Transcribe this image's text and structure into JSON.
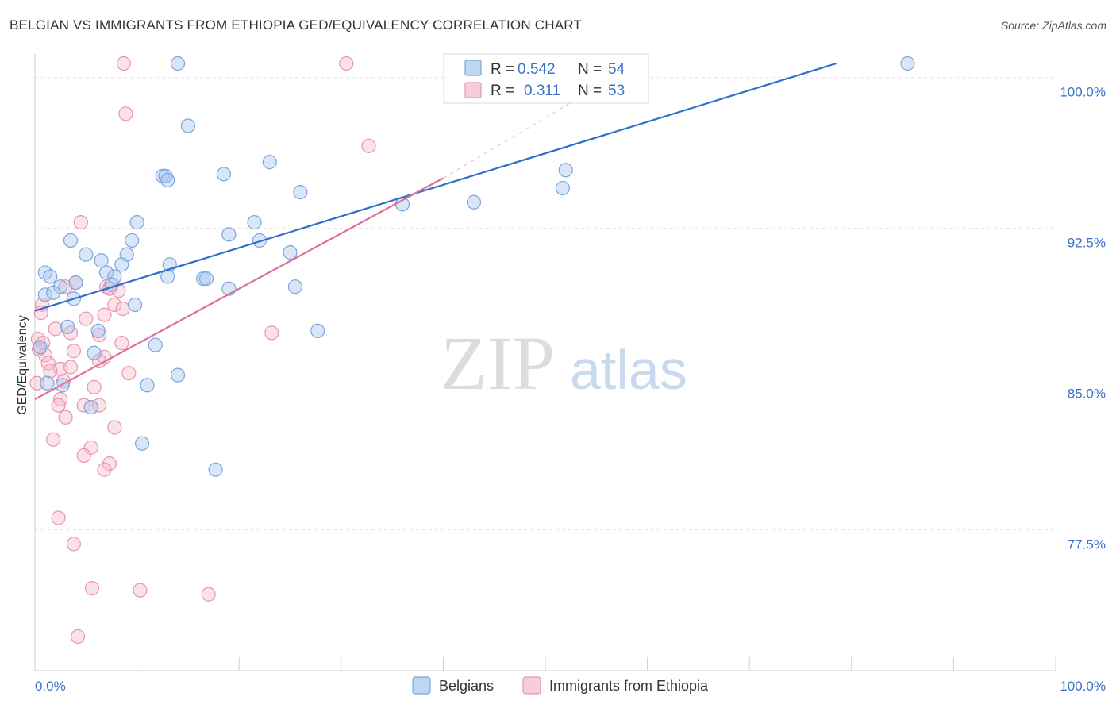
{
  "title": "BELGIAN VS IMMIGRANTS FROM ETHIOPIA GED/EQUIVALENCY CORRELATION CHART",
  "source": "Source: ZipAtlas.com",
  "watermark": {
    "zip": "ZIP",
    "atlas": "atlas"
  },
  "legend": {
    "r_label": "R =",
    "n_label": "N =",
    "rows": [
      {
        "r": "0.542",
        "n": "54"
      },
      {
        "r": "0.311",
        "n": "53"
      }
    ]
  },
  "bottom_legend": [
    "Belgians",
    "Immigrants from Ethiopia"
  ],
  "colors": {
    "belgians_fill": "#a8c8f0",
    "belgians_stroke": "#7aa6dc",
    "belgians_line": "#2f6fca",
    "ethiopia_fill": "#f6bccd",
    "ethiopia_stroke": "#e895b0",
    "ethiopia_line": "#e06f98",
    "tick_text": "#3b73c8"
  },
  "chart_data": {
    "type": "scatter",
    "ylabel": "GED/Equivalency",
    "xlim": [
      0,
      100
    ],
    "ylim": [
      70.5,
      100.7
    ],
    "x_tick_labels": [
      "0.0%",
      "100.0%"
    ],
    "y_ticks": [
      {
        "value": 100.0,
        "label": "100.0%"
      },
      {
        "value": 92.5,
        "label": "92.5%"
      },
      {
        "value": 85.0,
        "label": "85.0%"
      },
      {
        "value": 77.5,
        "label": "77.5%"
      }
    ],
    "series": [
      {
        "name": "Belgians",
        "trend": {
          "x": [
            0,
            78.5
          ],
          "y": [
            88.4,
            100.7
          ]
        },
        "points": [
          [
            14,
            100.7
          ],
          [
            85.5,
            100.7
          ],
          [
            15,
            97.6
          ],
          [
            23,
            95.8
          ],
          [
            18.5,
            95.2
          ],
          [
            12.5,
            95.1
          ],
          [
            12.8,
            95.1
          ],
          [
            13,
            94.9
          ],
          [
            26,
            94.3
          ],
          [
            43,
            93.8
          ],
          [
            36,
            93.7
          ],
          [
            51.7,
            94.5
          ],
          [
            52,
            95.4
          ],
          [
            10,
            92.8
          ],
          [
            21.5,
            92.8
          ],
          [
            19,
            92.2
          ],
          [
            22,
            91.9
          ],
          [
            3.5,
            91.9
          ],
          [
            9.5,
            91.9
          ],
          [
            5,
            91.2
          ],
          [
            9,
            91.2
          ],
          [
            25,
            91.3
          ],
          [
            6.5,
            90.9
          ],
          [
            8.5,
            90.7
          ],
          [
            13.2,
            90.7
          ],
          [
            1,
            90.3
          ],
          [
            7,
            90.3
          ],
          [
            1.5,
            90.1
          ],
          [
            7.8,
            90.1
          ],
          [
            13,
            90.1
          ],
          [
            16.5,
            90.0
          ],
          [
            16.8,
            90.0
          ],
          [
            4,
            89.8
          ],
          [
            2.5,
            89.6
          ],
          [
            7.5,
            89.7
          ],
          [
            19,
            89.5
          ],
          [
            25.5,
            89.6
          ],
          [
            1,
            89.2
          ],
          [
            1.8,
            89.3
          ],
          [
            3.8,
            89.0
          ],
          [
            9.8,
            88.7
          ],
          [
            3.2,
            87.6
          ],
          [
            6.2,
            87.4
          ],
          [
            27.7,
            87.4
          ],
          [
            0.5,
            86.6
          ],
          [
            5.8,
            86.3
          ],
          [
            11.8,
            86.7
          ],
          [
            2.7,
            84.7
          ],
          [
            11,
            84.7
          ],
          [
            14,
            85.2
          ],
          [
            5.5,
            83.6
          ],
          [
            10.5,
            81.8
          ],
          [
            17.7,
            80.5
          ],
          [
            1.2,
            84.8
          ]
        ]
      },
      {
        "name": "Immigrants from Ethiopia",
        "trend": {
          "x": [
            0,
            40
          ],
          "y": [
            84.0,
            95.0
          ]
        },
        "trend_extension": {
          "x": [
            40,
            54
          ],
          "y": [
            95.0,
            99.2
          ]
        },
        "points": [
          [
            8.7,
            100.7
          ],
          [
            30.5,
            100.7
          ],
          [
            8.9,
            98.2
          ],
          [
            32.7,
            96.6
          ],
          [
            4.5,
            92.8
          ],
          [
            3,
            89.6
          ],
          [
            4,
            89.8
          ],
          [
            7,
            89.6
          ],
          [
            7.3,
            89.5
          ],
          [
            0.7,
            88.7
          ],
          [
            0.6,
            88.3
          ],
          [
            6.8,
            88.2
          ],
          [
            7.8,
            88.7
          ],
          [
            2,
            87.5
          ],
          [
            3.5,
            87.3
          ],
          [
            23.2,
            87.3
          ],
          [
            6.3,
            87.2
          ],
          [
            0.3,
            87.0
          ],
          [
            0.8,
            86.8
          ],
          [
            8.5,
            86.8
          ],
          [
            1,
            86.2
          ],
          [
            1.3,
            85.8
          ],
          [
            3.8,
            86.4
          ],
          [
            6.8,
            86.1
          ],
          [
            2.5,
            85.5
          ],
          [
            3.5,
            85.6
          ],
          [
            9.2,
            85.3
          ],
          [
            1.5,
            85.4
          ],
          [
            6.3,
            85.9
          ],
          [
            2.8,
            84.9
          ],
          [
            5.8,
            84.6
          ],
          [
            0.2,
            84.8
          ],
          [
            2.5,
            84.0
          ],
          [
            2.3,
            83.7
          ],
          [
            4.8,
            83.7
          ],
          [
            6.3,
            83.7
          ],
          [
            3,
            83.1
          ],
          [
            7.8,
            82.6
          ],
          [
            1.8,
            82.0
          ],
          [
            5.5,
            81.6
          ],
          [
            4.8,
            81.2
          ],
          [
            7.3,
            80.8
          ],
          [
            6.8,
            80.5
          ],
          [
            2.3,
            78.1
          ],
          [
            3.8,
            76.8
          ],
          [
            5.6,
            74.6
          ],
          [
            10.3,
            74.5
          ],
          [
            17,
            74.3
          ],
          [
            4.2,
            72.2
          ],
          [
            0.4,
            86.5
          ],
          [
            8.6,
            88.5
          ],
          [
            8.2,
            89.4
          ],
          [
            5,
            88.0
          ]
        ]
      }
    ]
  }
}
